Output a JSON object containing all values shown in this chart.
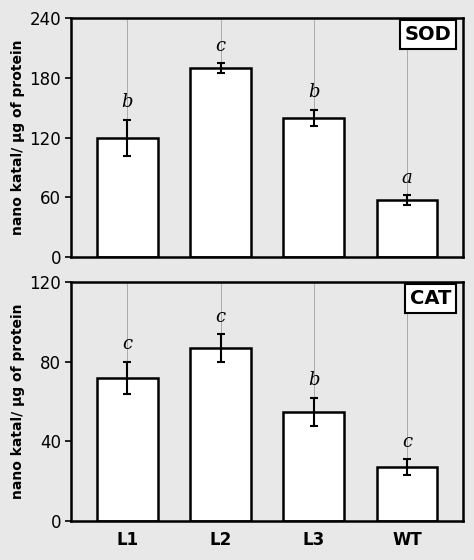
{
  "sod": {
    "categories": [
      "L1",
      "L2",
      "L3",
      "WT"
    ],
    "values": [
      120,
      190,
      140,
      57
    ],
    "errors": [
      18,
      5,
      8,
      5
    ],
    "labels": [
      "b",
      "c",
      "b",
      "a"
    ],
    "ylabel": "nano katal/ μg of protein",
    "ylim": [
      0,
      240
    ],
    "yticks": [
      0,
      60,
      120,
      180,
      240
    ],
    "title": "SOD"
  },
  "cat": {
    "categories": [
      "L1",
      "L2",
      "L3",
      "WT"
    ],
    "values": [
      72,
      87,
      55,
      27
    ],
    "errors": [
      8,
      7,
      7,
      4
    ],
    "labels": [
      "c",
      "c",
      "b",
      "c"
    ],
    "ylabel": "nano katal/ μg of protein",
    "ylim": [
      0,
      120
    ],
    "yticks": [
      0,
      40,
      80,
      120
    ],
    "title": "CAT"
  },
  "bar_color": "#ffffff",
  "bar_edgecolor": "#000000",
  "bar_linewidth": 1.8,
  "bar_width": 0.65,
  "errorbar_color": "#000000",
  "errorbar_lw": 1.5,
  "errorbar_capsize": 3,
  "label_fontsize": 13,
  "axis_label_fontsize": 10,
  "tick_fontsize": 12,
  "title_fontsize": 14,
  "figure_bg": "#e8e8e8",
  "axes_bg": "#e8e8e8"
}
